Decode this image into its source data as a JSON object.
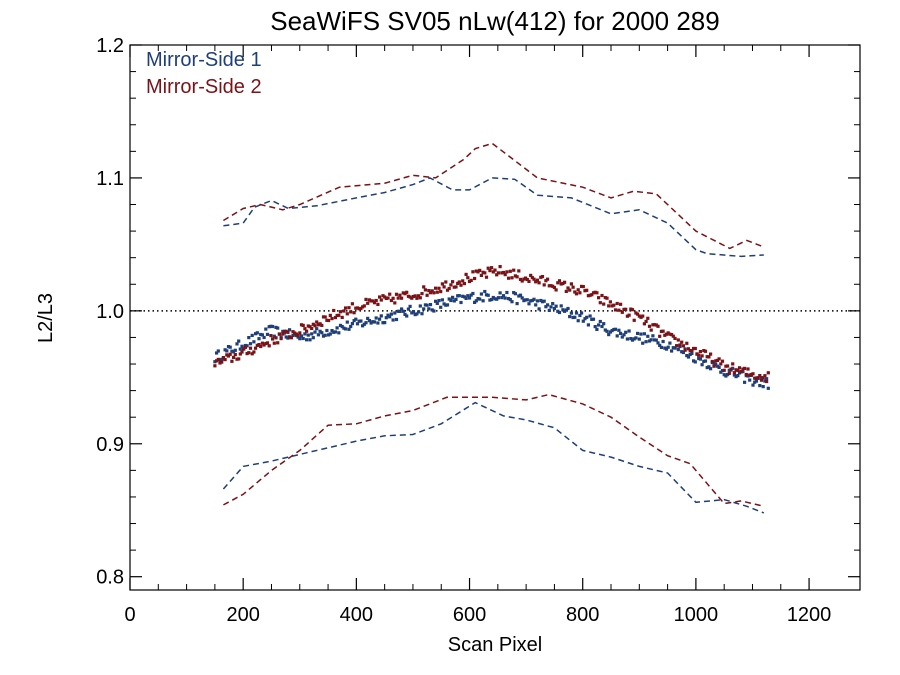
{
  "chart_data": {
    "type": "scatter",
    "title": "SeaWiFS SV05 nLw(412) for 2000 289",
    "xlabel": "Scan Pixel",
    "ylabel": "L2/L3",
    "xlim": [
      0,
      1290
    ],
    "ylim": [
      0.79,
      1.2
    ],
    "x_ticks": [
      0,
      200,
      400,
      600,
      800,
      1000,
      1200
    ],
    "x_tick_labels": [
      "0",
      "200",
      "400",
      "600",
      "800",
      "1000",
      "1200"
    ],
    "y_ticks": [
      0.8,
      0.9,
      1.0,
      1.1,
      1.2
    ],
    "y_tick_labels": [
      "0.8",
      "0.9",
      "1.0",
      "1.1",
      "1.2"
    ],
    "reference_line": 1.0,
    "legend_position": "top-left",
    "colors": {
      "ms1": "#1f3f7a",
      "ms2": "#7a1216"
    },
    "series": [
      {
        "name": "Mirror-Side 1",
        "color": "#1f3f7a",
        "kind": "points",
        "anchors": [
          [
            150,
            0.965
          ],
          [
            200,
            0.975
          ],
          [
            250,
            0.985
          ],
          [
            300,
            0.98
          ],
          [
            350,
            0.985
          ],
          [
            400,
            0.99
          ],
          [
            450,
            0.995
          ],
          [
            500,
            1.0
          ],
          [
            550,
            1.005
          ],
          [
            600,
            1.01
          ],
          [
            650,
            1.012
          ],
          [
            700,
            1.008
          ],
          [
            750,
            1.002
          ],
          [
            800,
            0.995
          ],
          [
            850,
            0.985
          ],
          [
            900,
            0.98
          ],
          [
            950,
            0.975
          ],
          [
            1000,
            0.965
          ],
          [
            1050,
            0.955
          ],
          [
            1100,
            0.948
          ],
          [
            1130,
            0.945
          ]
        ]
      },
      {
        "name": "Mirror-Side 2",
        "color": "#7a1216",
        "kind": "points",
        "anchors": [
          [
            150,
            0.96
          ],
          [
            200,
            0.968
          ],
          [
            250,
            0.978
          ],
          [
            300,
            0.985
          ],
          [
            350,
            0.995
          ],
          [
            400,
            1.003
          ],
          [
            450,
            1.008
          ],
          [
            500,
            1.012
          ],
          [
            550,
            1.018
          ],
          [
            600,
            1.025
          ],
          [
            650,
            1.03
          ],
          [
            700,
            1.025
          ],
          [
            750,
            1.02
          ],
          [
            800,
            1.015
          ],
          [
            850,
            1.005
          ],
          [
            900,
            0.995
          ],
          [
            950,
            0.98
          ],
          [
            1000,
            0.97
          ],
          [
            1050,
            0.958
          ],
          [
            1100,
            0.952
          ],
          [
            1130,
            0.95
          ]
        ]
      },
      {
        "name": "Mirror-Side 1 upper",
        "color": "#1f3f7a",
        "kind": "dashed",
        "points": [
          [
            165,
            1.064
          ],
          [
            200,
            1.066
          ],
          [
            220,
            1.078
          ],
          [
            250,
            1.083
          ],
          [
            280,
            1.077
          ],
          [
            330,
            1.079
          ],
          [
            400,
            1.085
          ],
          [
            450,
            1.089
          ],
          [
            500,
            1.095
          ],
          [
            530,
            1.1
          ],
          [
            570,
            1.091
          ],
          [
            600,
            1.091
          ],
          [
            640,
            1.1
          ],
          [
            680,
            1.099
          ],
          [
            720,
            1.087
          ],
          [
            780,
            1.085
          ],
          [
            850,
            1.073
          ],
          [
            900,
            1.076
          ],
          [
            950,
            1.066
          ],
          [
            1000,
            1.046
          ],
          [
            1020,
            1.043
          ],
          [
            1080,
            1.041
          ],
          [
            1120,
            1.042
          ]
        ]
      },
      {
        "name": "Mirror-Side 2 upper",
        "color": "#7a1216",
        "kind": "dashed",
        "points": [
          [
            165,
            1.068
          ],
          [
            200,
            1.077
          ],
          [
            230,
            1.08
          ],
          [
            270,
            1.076
          ],
          [
            300,
            1.08
          ],
          [
            370,
            1.093
          ],
          [
            450,
            1.096
          ],
          [
            500,
            1.102
          ],
          [
            540,
            1.1
          ],
          [
            590,
            1.114
          ],
          [
            610,
            1.122
          ],
          [
            640,
            1.126
          ],
          [
            680,
            1.113
          ],
          [
            720,
            1.1
          ],
          [
            800,
            1.093
          ],
          [
            850,
            1.085
          ],
          [
            890,
            1.09
          ],
          [
            930,
            1.088
          ],
          [
            1000,
            1.06
          ],
          [
            1060,
            1.047
          ],
          [
            1090,
            1.053
          ],
          [
            1120,
            1.048
          ]
        ]
      },
      {
        "name": "Mirror-Side 1 lower",
        "color": "#1f3f7a",
        "kind": "dashed",
        "points": [
          [
            165,
            0.866
          ],
          [
            200,
            0.883
          ],
          [
            250,
            0.887
          ],
          [
            300,
            0.892
          ],
          [
            350,
            0.897
          ],
          [
            400,
            0.902
          ],
          [
            450,
            0.906
          ],
          [
            500,
            0.907
          ],
          [
            550,
            0.915
          ],
          [
            610,
            0.931
          ],
          [
            660,
            0.921
          ],
          [
            700,
            0.918
          ],
          [
            750,
            0.912
          ],
          [
            800,
            0.895
          ],
          [
            850,
            0.89
          ],
          [
            900,
            0.883
          ],
          [
            950,
            0.878
          ],
          [
            1000,
            0.856
          ],
          [
            1050,
            0.858
          ],
          [
            1090,
            0.853
          ],
          [
            1120,
            0.848
          ]
        ]
      },
      {
        "name": "Mirror-Side 2 lower",
        "color": "#7a1216",
        "kind": "dashed",
        "points": [
          [
            165,
            0.854
          ],
          [
            200,
            0.862
          ],
          [
            250,
            0.88
          ],
          [
            300,
            0.895
          ],
          [
            350,
            0.914
          ],
          [
            400,
            0.915
          ],
          [
            450,
            0.921
          ],
          [
            500,
            0.925
          ],
          [
            560,
            0.935
          ],
          [
            640,
            0.935
          ],
          [
            700,
            0.933
          ],
          [
            740,
            0.937
          ],
          [
            800,
            0.93
          ],
          [
            850,
            0.92
          ],
          [
            900,
            0.905
          ],
          [
            950,
            0.891
          ],
          [
            990,
            0.885
          ],
          [
            1020,
            0.87
          ],
          [
            1050,
            0.855
          ],
          [
            1080,
            0.857
          ],
          [
            1120,
            0.853
          ]
        ]
      }
    ]
  }
}
